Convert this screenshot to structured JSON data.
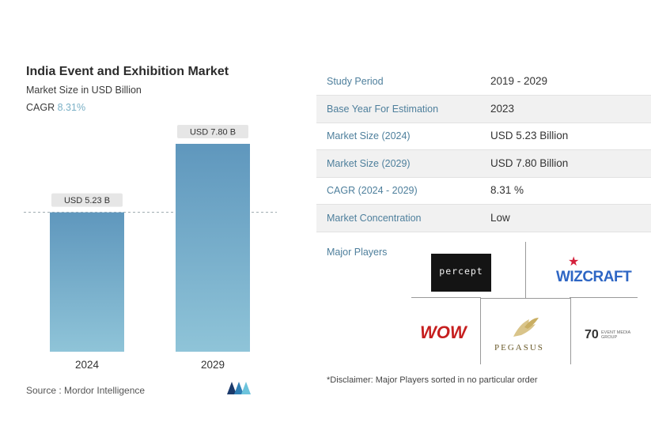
{
  "header": {
    "title": "India Event and Exhibition Market",
    "subtitle": "Market Size in USD Billion",
    "cagr_label": "CAGR",
    "cagr_value": "8.31%"
  },
  "chart_data": {
    "type": "bar",
    "title": "India Event and Exhibition Market",
    "subtitle": "Market Size in USD Billion",
    "categories": [
      "2024",
      "2029"
    ],
    "values": [
      5.23,
      7.8
    ],
    "data_labels": [
      "USD 5.23 B",
      "USD 7.80 B"
    ],
    "ylim": [
      0,
      8.6
    ],
    "bar_color": "#5f97bd",
    "bar_color_light": "#8fc4d8",
    "reference_line": 5.23,
    "grid": false,
    "legend": "none"
  },
  "source": "Source :  Mordor Intelligence",
  "info_table": [
    {
      "key": "Study Period",
      "value": "2019 - 2029"
    },
    {
      "key": "Base Year For Estimation",
      "value": "2023"
    },
    {
      "key": "Market Size (2024)",
      "value": "USD 5.23 Billion"
    },
    {
      "key": "Market Size (2029)",
      "value": "USD 7.80 Billion"
    },
    {
      "key": "CAGR (2024 - 2029)",
      "value": "8.31 %"
    },
    {
      "key": "Market Concentration",
      "value": "Low"
    }
  ],
  "major_players": {
    "label": "Major Players",
    "logos": {
      "percept": "percept",
      "wizcraft": "WIZCRAFT",
      "wow": "WOW",
      "pegasus": "PEGASUS",
      "seventy": "70",
      "seventy_sub": "EVENT MEDIA GROUP"
    },
    "disclaimer": "*Disclaimer: Major Players sorted in no particular order"
  },
  "colors": {
    "accent_text": "#4e7f9c",
    "cagr_value": "#7ab0c6"
  }
}
